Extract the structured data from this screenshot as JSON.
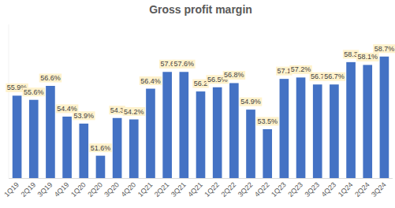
{
  "chart_data": {
    "type": "bar",
    "title": "Gross profit margin",
    "categories": [
      "1Q19",
      "2Q19",
      "3Q19",
      "4Q19",
      "1Q20",
      "2Q20",
      "3Q20",
      "4Q20",
      "1Q21",
      "2Q21",
      "3Q21",
      "4Q21",
      "1Q22",
      "2Q22",
      "3Q22",
      "4Q22",
      "1Q23",
      "2Q23",
      "3Q23",
      "4Q23",
      "1Q24",
      "2Q24",
      "3Q24"
    ],
    "values": [
      55.9,
      55.6,
      56.6,
      54.4,
      53.9,
      51.6,
      54.3,
      54.2,
      56.4,
      57.6,
      57.6,
      56.2,
      56.5,
      56.8,
      54.9,
      53.5,
      57.1,
      57.2,
      56.7,
      56.7,
      58.3,
      58.1,
      58.7
    ],
    "value_labels": [
      "55.9%",
      "55.6%",
      "56.6%",
      "54.4%",
      "53.9%",
      "51.6%",
      "54.3",
      "54.2%",
      "56.4%",
      "57.6",
      "57.6%",
      "56.2",
      "56.5%",
      "56.8%",
      "54.9%",
      "53.5%",
      "57.1",
      "57.2%",
      "56.7",
      "56.7%",
      "58.3",
      "58.1%",
      "58.7%"
    ],
    "color": "#4472c4",
    "ylim": [
      50,
      61
    ],
    "data_labels": true,
    "tick_labels": "x",
    "grid": false
  }
}
